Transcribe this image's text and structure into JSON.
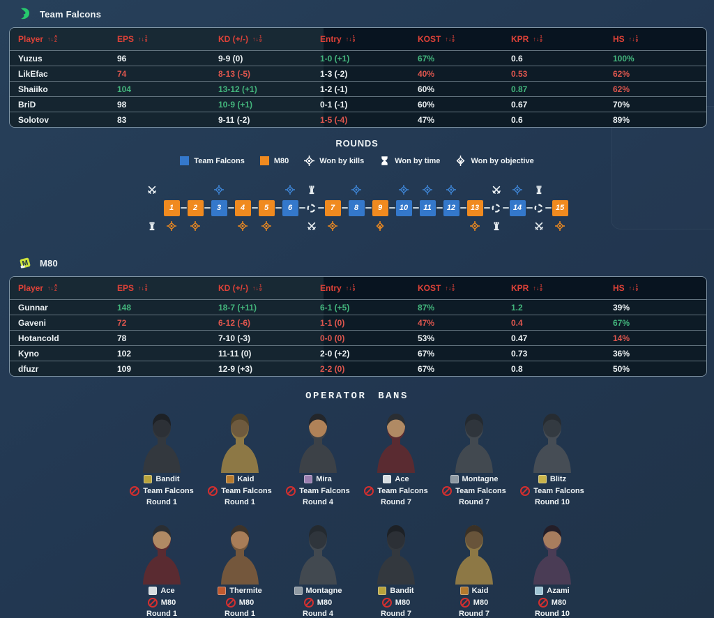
{
  "colors": {
    "header_red": "#df4238",
    "positive_green": "#43b57c",
    "negative_red": "#de564e",
    "falcons_blue": "#3478cb",
    "m80_orange": "#f08a1f",
    "ban_red": "#d42f2f",
    "falcons_logo_green": "#27c96d",
    "m80_logo_lime": "#cde23b"
  },
  "teams": [
    {
      "name": "Team Falcons",
      "logo_icon": "falcon-logo",
      "table": {
        "headers": [
          {
            "label": "Player",
            "sort_icon": "sort-alpha-icon"
          },
          {
            "label": "EPS",
            "sort_icon": "sort-numeric-icon"
          },
          {
            "label": "KD (+/-)",
            "sort_icon": "sort-numeric-icon"
          },
          {
            "label": "Entry",
            "sort_icon": "sort-numeric-icon"
          },
          {
            "label": "KOST",
            "sort_icon": "sort-numeric-icon"
          },
          {
            "label": "KPR",
            "sort_icon": "sort-numeric-icon"
          },
          {
            "label": "HS",
            "sort_icon": "sort-numeric-icon"
          }
        ],
        "rows": [
          {
            "player": "Yuzus",
            "cells": [
              {
                "v": "96",
                "tone": "neu"
              },
              {
                "v": "9-9 (0)",
                "tone": "neu"
              },
              {
                "v": "1-0 (+1)",
                "tone": "pos"
              },
              {
                "v": "67%",
                "tone": "pos"
              },
              {
                "v": "0.6",
                "tone": "neu"
              },
              {
                "v": "100%",
                "tone": "pos"
              }
            ]
          },
          {
            "player": "LikEfac",
            "cells": [
              {
                "v": "74",
                "tone": "neg"
              },
              {
                "v": "8-13 (-5)",
                "tone": "neg"
              },
              {
                "v": "1-3 (-2)",
                "tone": "neu"
              },
              {
                "v": "40%",
                "tone": "neg"
              },
              {
                "v": "0.53",
                "tone": "neg"
              },
              {
                "v": "62%",
                "tone": "neg"
              }
            ]
          },
          {
            "player": "Shaiiko",
            "cells": [
              {
                "v": "104",
                "tone": "pos"
              },
              {
                "v": "13-12 (+1)",
                "tone": "pos"
              },
              {
                "v": "1-2 (-1)",
                "tone": "neu"
              },
              {
                "v": "60%",
                "tone": "neu"
              },
              {
                "v": "0.87",
                "tone": "pos"
              },
              {
                "v": "62%",
                "tone": "neg"
              }
            ]
          },
          {
            "player": "BriD",
            "cells": [
              {
                "v": "98",
                "tone": "neu"
              },
              {
                "v": "10-9 (+1)",
                "tone": "pos"
              },
              {
                "v": "0-1 (-1)",
                "tone": "neu"
              },
              {
                "v": "60%",
                "tone": "neu"
              },
              {
                "v": "0.67",
                "tone": "neu"
              },
              {
                "v": "70%",
                "tone": "neu"
              }
            ]
          },
          {
            "player": "Solotov",
            "cells": [
              {
                "v": "83",
                "tone": "neu"
              },
              {
                "v": "9-11 (-2)",
                "tone": "neu"
              },
              {
                "v": "1-5 (-4)",
                "tone": "neg"
              },
              {
                "v": "47%",
                "tone": "neu"
              },
              {
                "v": "0.6",
                "tone": "neu"
              },
              {
                "v": "89%",
                "tone": "neu"
              }
            ]
          }
        ]
      }
    },
    {
      "name": "M80",
      "logo_icon": "m80-logo",
      "table": {
        "headers": [
          {
            "label": "Player",
            "sort_icon": "sort-alpha-icon"
          },
          {
            "label": "EPS",
            "sort_icon": "sort-numeric-icon"
          },
          {
            "label": "KD (+/-)",
            "sort_icon": "sort-numeric-icon"
          },
          {
            "label": "Entry",
            "sort_icon": "sort-numeric-icon"
          },
          {
            "label": "KOST",
            "sort_icon": "sort-numeric-icon"
          },
          {
            "label": "KPR",
            "sort_icon": "sort-numeric-icon"
          },
          {
            "label": "HS",
            "sort_icon": "sort-numeric-icon"
          }
        ],
        "rows": [
          {
            "player": "Gunnar",
            "cells": [
              {
                "v": "148",
                "tone": "pos"
              },
              {
                "v": "18-7 (+11)",
                "tone": "pos"
              },
              {
                "v": "6-1 (+5)",
                "tone": "pos"
              },
              {
                "v": "87%",
                "tone": "pos"
              },
              {
                "v": "1.2",
                "tone": "pos"
              },
              {
                "v": "39%",
                "tone": "neu"
              }
            ]
          },
          {
            "player": "Gaveni",
            "cells": [
              {
                "v": "72",
                "tone": "neg"
              },
              {
                "v": "6-12 (-6)",
                "tone": "neg"
              },
              {
                "v": "1-1 (0)",
                "tone": "neg"
              },
              {
                "v": "47%",
                "tone": "neg"
              },
              {
                "v": "0.4",
                "tone": "neg"
              },
              {
                "v": "67%",
                "tone": "pos"
              }
            ]
          },
          {
            "player": "Hotancold",
            "cells": [
              {
                "v": "78",
                "tone": "neu"
              },
              {
                "v": "7-10 (-3)",
                "tone": "neu"
              },
              {
                "v": "0-0 (0)",
                "tone": "neg"
              },
              {
                "v": "53%",
                "tone": "neu"
              },
              {
                "v": "0.47",
                "tone": "neu"
              },
              {
                "v": "14%",
                "tone": "neg"
              }
            ]
          },
          {
            "player": "Kyno",
            "cells": [
              {
                "v": "102",
                "tone": "neu"
              },
              {
                "v": "11-11 (0)",
                "tone": "neu"
              },
              {
                "v": "2-0 (+2)",
                "tone": "neu"
              },
              {
                "v": "67%",
                "tone": "neu"
              },
              {
                "v": "0.73",
                "tone": "neu"
              },
              {
                "v": "36%",
                "tone": "neu"
              }
            ]
          },
          {
            "player": "dfuzr",
            "cells": [
              {
                "v": "109",
                "tone": "neu"
              },
              {
                "v": "12-9 (+3)",
                "tone": "neu"
              },
              {
                "v": "2-2 (0)",
                "tone": "neg"
              },
              {
                "v": "67%",
                "tone": "neu"
              },
              {
                "v": "0.8",
                "tone": "neu"
              },
              {
                "v": "50%",
                "tone": "neu"
              }
            ]
          }
        ]
      }
    }
  ],
  "rounds": {
    "title": "ROUNDS",
    "legend": [
      {
        "kind": "swatch",
        "color": "#3478cb",
        "label": "Team Falcons"
      },
      {
        "kind": "swatch",
        "color": "#f08a1f",
        "label": "M80"
      },
      {
        "kind": "icon",
        "icon": "kills-icon",
        "label": "Won by kills"
      },
      {
        "kind": "icon",
        "icon": "time-icon",
        "label": "Won by time"
      },
      {
        "kind": "icon",
        "icon": "objective-icon",
        "label": "Won by objective"
      }
    ],
    "timeline": [
      {
        "kind": "sides",
        "top": "swords-icon",
        "bottom": "rook-icon"
      },
      {
        "kind": "round",
        "n": "1",
        "winner": "m80",
        "win": "kills-icon"
      },
      {
        "kind": "round",
        "n": "2",
        "winner": "m80",
        "win": "kills-icon"
      },
      {
        "kind": "round",
        "n": "3",
        "winner": "falcons",
        "win": "kills-icon"
      },
      {
        "kind": "round",
        "n": "4",
        "winner": "m80",
        "win": "kills-icon"
      },
      {
        "kind": "round",
        "n": "5",
        "winner": "m80",
        "win": "kills-icon"
      },
      {
        "kind": "round",
        "n": "6",
        "winner": "falcons",
        "win": "kills-icon"
      },
      {
        "kind": "swap",
        "top": "rook-icon",
        "bottom": "swords-icon"
      },
      {
        "kind": "round",
        "n": "7",
        "winner": "m80",
        "win": "kills-icon"
      },
      {
        "kind": "round",
        "n": "8",
        "winner": "falcons",
        "win": "kills-icon"
      },
      {
        "kind": "round",
        "n": "9",
        "winner": "m80",
        "win": "objective-icon"
      },
      {
        "kind": "round",
        "n": "10",
        "winner": "falcons",
        "win": "kills-icon"
      },
      {
        "kind": "round",
        "n": "11",
        "winner": "falcons",
        "win": "kills-icon"
      },
      {
        "kind": "round",
        "n": "12",
        "winner": "falcons",
        "win": "kills-icon"
      },
      {
        "kind": "round",
        "n": "13",
        "winner": "m80",
        "win": "kills-icon"
      },
      {
        "kind": "swap",
        "top": "swords-icon",
        "bottom": "rook-icon"
      },
      {
        "kind": "round",
        "n": "14",
        "winner": "falcons",
        "win": "kills-icon"
      },
      {
        "kind": "swap",
        "top": "rook-icon",
        "bottom": "swords-icon"
      },
      {
        "kind": "round",
        "n": "15",
        "winner": "m80",
        "win": "kills-icon"
      }
    ]
  },
  "operator_bans": {
    "title": "OPERATOR BANS",
    "rows": [
      [
        {
          "operator": "Bandit",
          "team": "Team Falcons",
          "round": "Round 1",
          "badge": "#b8a33c",
          "portrait": {
            "body": "#33383e",
            "head": "#2c3036",
            "hat": "#1d2126"
          }
        },
        {
          "operator": "Kaid",
          "team": "Team Falcons",
          "round": "Round 1",
          "badge": "#b57a2e",
          "portrait": {
            "body": "#8d7845",
            "head": "#6e5a3e",
            "hat": "#4f422a"
          }
        },
        {
          "operator": "Mira",
          "team": "Team Falcons",
          "round": "Round 4",
          "badge": "#9b7fb0",
          "portrait": {
            "body": "#3c4147",
            "head": "#b08258",
            "hat": "#23262b"
          }
        },
        {
          "operator": "Ace",
          "team": "Team Falcons",
          "round": "Round 7",
          "badge": "#d7dde1",
          "portrait": {
            "body": "#5a2b31",
            "head": "#b08a64",
            "hat": "#2a2e33"
          }
        },
        {
          "operator": "Montagne",
          "team": "Team Falcons",
          "round": "Round 7",
          "badge": "#8f9aa3",
          "portrait": {
            "body": "#424950",
            "head": "#2f353c",
            "hat": "#242a30"
          }
        },
        {
          "operator": "Blitz",
          "team": "Team Falcons",
          "round": "Round 10",
          "badge": "#c9b44a",
          "portrait": {
            "body": "#464d55",
            "head": "#333a41",
            "hat": "#262c32"
          }
        }
      ],
      [
        {
          "operator": "Ace",
          "team": "M80",
          "round": "Round 1",
          "badge": "#d7dde1",
          "portrait": {
            "body": "#5a2b31",
            "head": "#b08a64",
            "hat": "#2a2e33"
          }
        },
        {
          "operator": "Thermite",
          "team": "M80",
          "round": "Round 1",
          "badge": "#c05a30",
          "portrait": {
            "body": "#74573c",
            "head": "#a87d58",
            "hat": "#3c332a"
          }
        },
        {
          "operator": "Montagne",
          "team": "M80",
          "round": "Round 4",
          "badge": "#8f9aa3",
          "portrait": {
            "body": "#424950",
            "head": "#2f353c",
            "hat": "#242a30"
          }
        },
        {
          "operator": "Bandit",
          "team": "M80",
          "round": "Round 7",
          "badge": "#b8a33c",
          "portrait": {
            "body": "#33383e",
            "head": "#2c3036",
            "hat": "#1d2126"
          }
        },
        {
          "operator": "Kaid",
          "team": "M80",
          "round": "Round 7",
          "badge": "#b57a2e",
          "portrait": {
            "body": "#8d7845",
            "head": "#68543a",
            "hat": "#3a3126"
          }
        },
        {
          "operator": "Azami",
          "team": "M80",
          "round": "Round 10",
          "badge": "#9fc4d4",
          "portrait": {
            "body": "#4a3c55",
            "head": "#a87d5e",
            "hat": "#241e28"
          }
        }
      ]
    ]
  }
}
